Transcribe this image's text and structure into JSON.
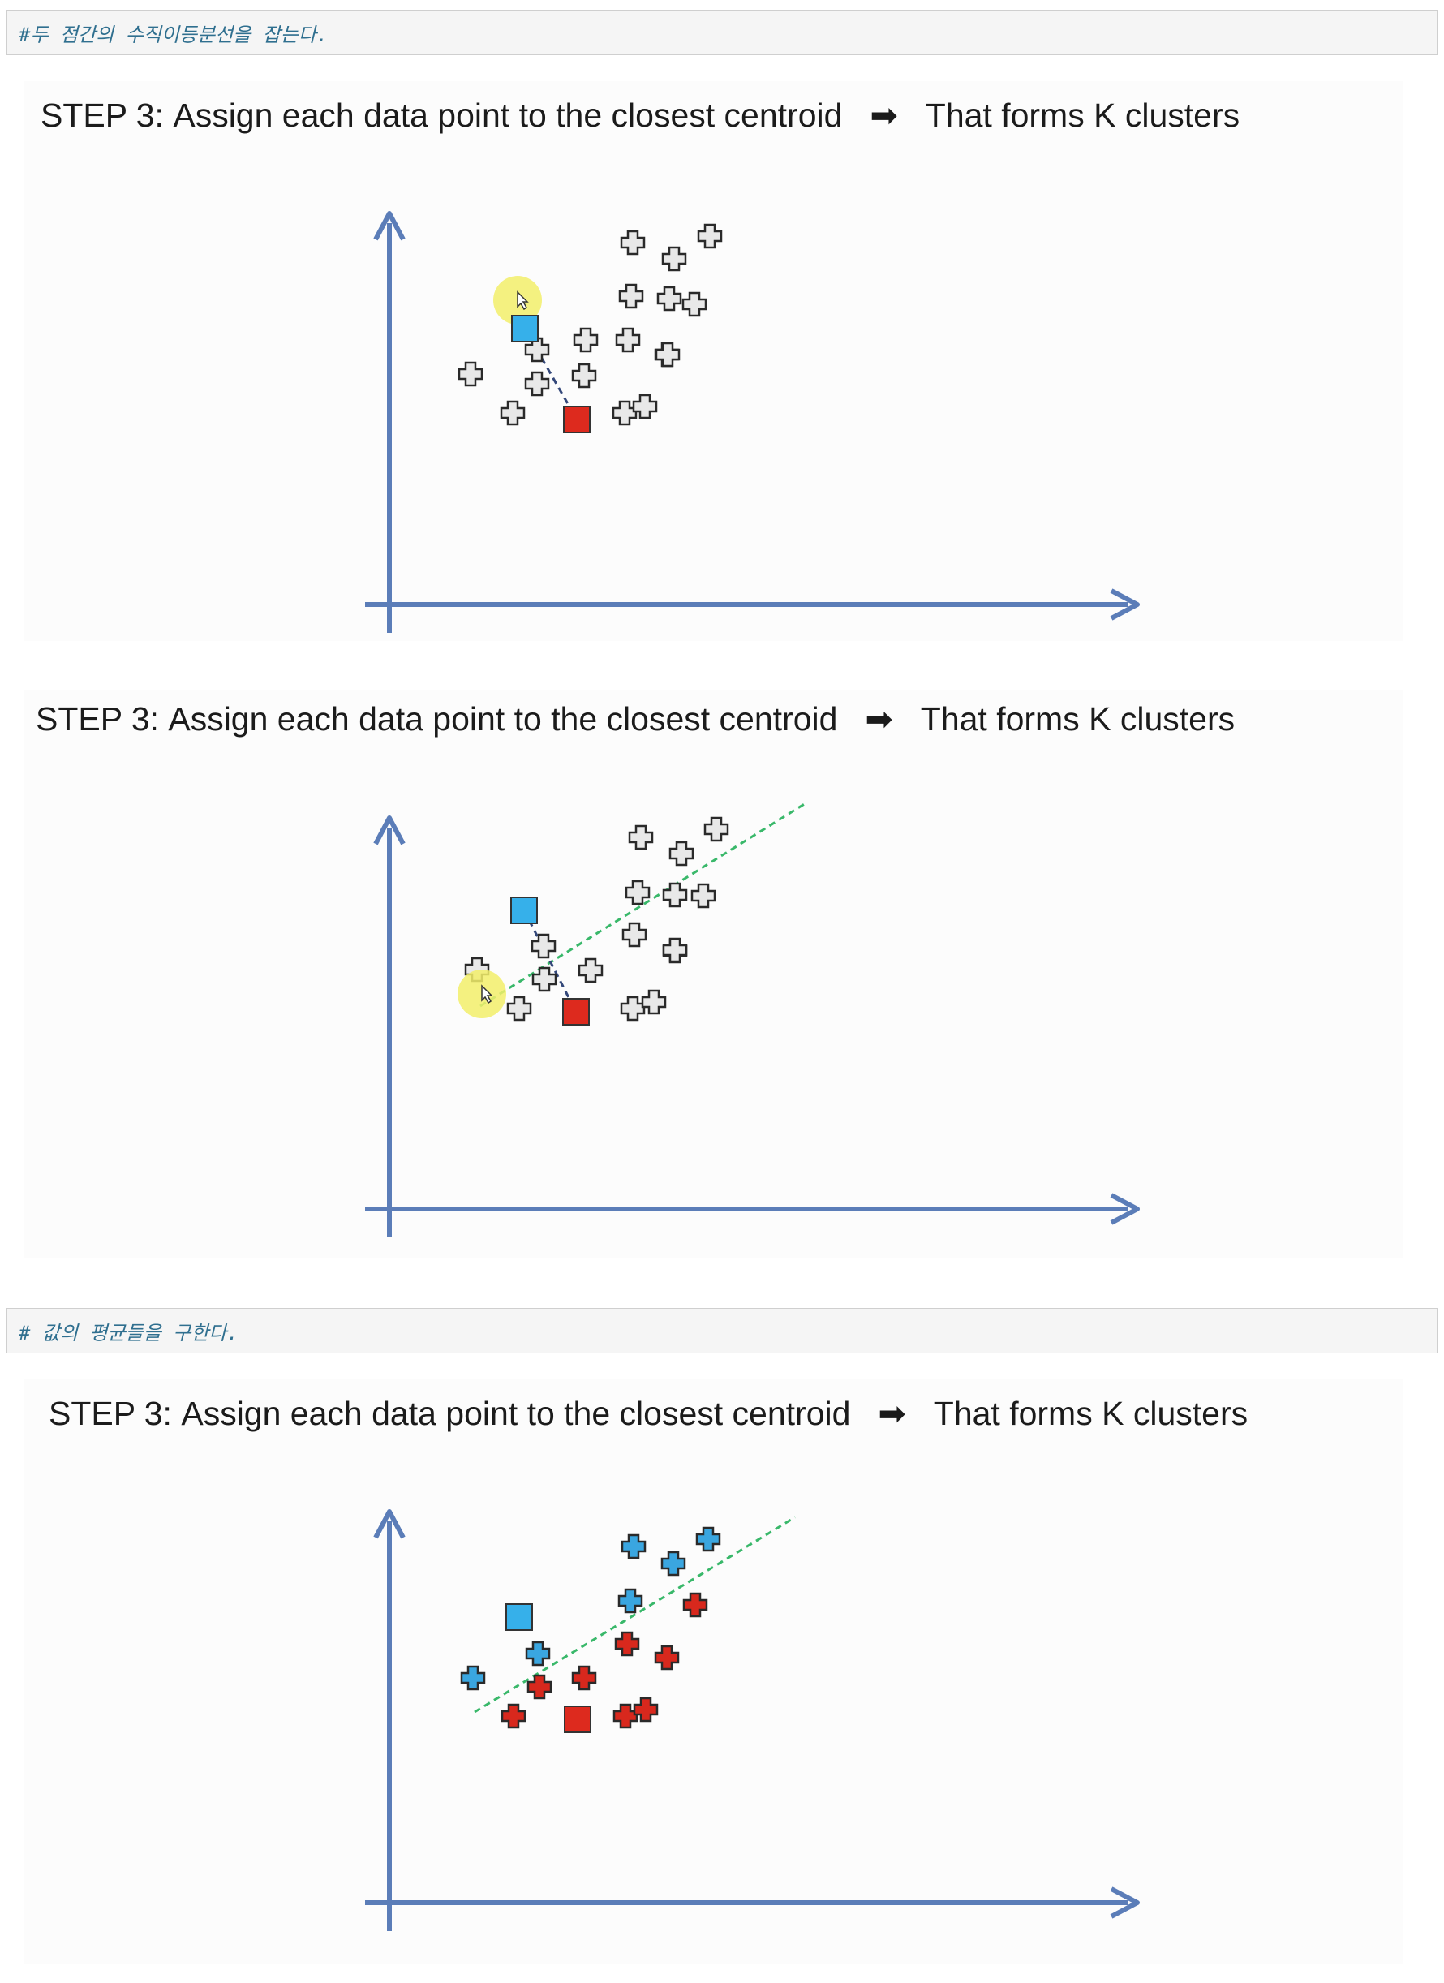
{
  "cells": [
    {
      "text": "#두 점간의 수직이등분선을 잡는다."
    },
    {
      "text": "# 값의 평균들을 구한다."
    }
  ],
  "slides": [
    {
      "step_label": "STEP 3:",
      "step_text": "Assign each data point to the closest centroid",
      "result_text": "That forms K clusters"
    },
    {
      "step_label": "STEP 3:",
      "step_text": "Assign each data point to the closest centroid",
      "result_text": "That forms K clusters"
    },
    {
      "step_label": "STEP 3:",
      "step_text": "Assign each data point to the closest centroid",
      "result_text": "That forms K clusters"
    }
  ],
  "colors": {
    "axis": "#5b7db8",
    "blue_centroid": "#36b0ea",
    "red_centroid": "#dd2a1e",
    "blue_point": "#3aa6e0",
    "red_point": "#d8281d",
    "neutral_point": "#e8e8e8",
    "connector": "#34487a",
    "bisector": "#39b86a",
    "cursor_highlight": "#f2ef6a"
  },
  "icons": {
    "step_arrow": "heavy-right-arrow-icon",
    "cursor": "mouse-pointer-icon"
  }
}
